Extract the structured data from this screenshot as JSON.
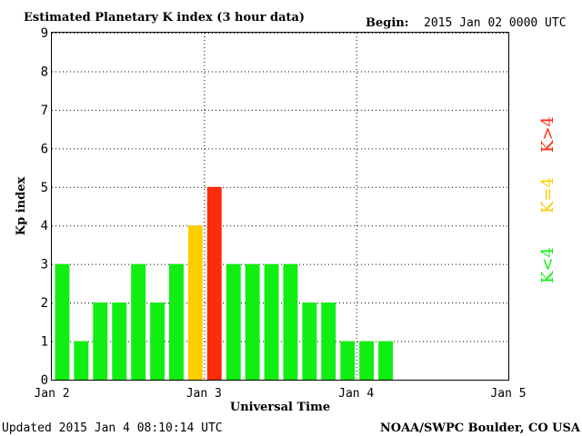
{
  "header": {
    "title": "Estimated Planetary K index (3 hour data)",
    "begin_label": "Begin:",
    "begin_value": "2015 Jan 02 0000 UTC"
  },
  "footer": {
    "updated": "Updated 2015 Jan  4 08:10:14 UTC",
    "source": "NOAA/SWPC Boulder, CO USA"
  },
  "legend": {
    "low": "K<4",
    "mid": "K=4",
    "high": "K>4"
  },
  "colors": {
    "low": "#11ee11",
    "mid": "#ffcc00",
    "high": "#ff2a0a",
    "grid": "#000000"
  },
  "chart_data": {
    "type": "bar",
    "title": "Estimated Planetary K index (3 hour data)",
    "xlabel": "Universal Time",
    "ylabel": "Kp index",
    "ylim": [
      0,
      9
    ],
    "yticks": [
      "0",
      "1",
      "2",
      "3",
      "4",
      "5",
      "6",
      "7",
      "8",
      "9"
    ],
    "xticks": [
      "Jan 2",
      "Jan 3",
      "Jan 4",
      "Jan 5"
    ],
    "x_range_days": [
      0,
      3
    ],
    "interval_hours": 3,
    "grid": true,
    "legend_position": "right",
    "values": [
      3,
      1,
      2,
      2,
      3,
      2,
      3,
      4,
      5,
      3,
      3,
      3,
      3,
      2,
      2,
      1,
      1,
      1
    ]
  }
}
